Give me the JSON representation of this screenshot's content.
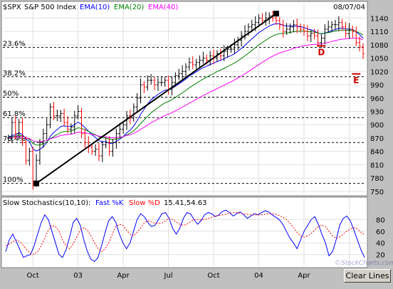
{
  "symbol_label": "$SPX",
  "index_name": "S&P 500 Index",
  "date": "08/07/04",
  "legend": [
    {
      "label": "EMA(10)",
      "color": "#0000ff"
    },
    {
      "label": "EMA(20)",
      "color": "#008000"
    },
    {
      "label": "EMA(40)",
      "color": "#ff00ff"
    }
  ],
  "stoch_header": {
    "label": "Slow Stochastics(10,10):",
    "fast": "Fast %K",
    "fast_color": "#0000ff",
    "slow": "Slow %D",
    "slow_color": "#ff0000",
    "values": "15.41,54.63"
  },
  "clear_button": "Clear Lines",
  "chart_data": [
    {
      "type": "bar",
      "title": "$SPX S&P 500 Index",
      "ylim": [
        745,
        1155
      ],
      "y_ticks": [
        750,
        780,
        810,
        840,
        870,
        900,
        930,
        960,
        990,
        1020,
        1050,
        1080,
        1110,
        1140
      ],
      "x_ticks": [
        {
          "label": "Oct",
          "i": 7
        },
        {
          "label": "03",
          "i": 20
        },
        {
          "label": "Apr",
          "i": 33
        },
        {
          "label": "Jul",
          "i": 46
        },
        {
          "label": "Oct",
          "i": 59
        },
        {
          "label": "04",
          "i": 72
        },
        {
          "label": "Apr",
          "i": 85
        },
        {
          "label": "Jul",
          "i": 98
        }
      ],
      "grid": true,
      "fib_levels": [
        {
          "label": "100%",
          "value": 768
        },
        {
          "label": "76.4%",
          "value": 860
        },
        {
          "label": "61.8%",
          "value": 916
        },
        {
          "label": "50%",
          "value": 962
        },
        {
          "label": "38.2%",
          "value": 1008
        },
        {
          "label": "23.6%",
          "value": 1074
        }
      ],
      "trendline": {
        "from": {
          "i": 8,
          "value": 768
        },
        "to": {
          "i": 77,
          "value": 1150
        }
      },
      "annotations": [
        {
          "label": "D",
          "i": 90,
          "value": 1063
        },
        {
          "label": "E",
          "i": 100,
          "value": 1000
        }
      ],
      "series": {
        "close": [
          870,
          905,
          880,
          905,
          860,
          820,
          840,
          768,
          820,
          860,
          880,
          900,
          940,
          920,
          920,
          925,
          905,
          890,
          895,
          920,
          930,
          880,
          860,
          850,
          840,
          845,
          830,
          855,
          860,
          840,
          860,
          880,
          890,
          900,
          920,
          915,
          940,
          960,
          990,
          985,
          1000,
          1000,
          990,
          995,
          995,
          1000,
          980,
          995,
          1010,
          1015,
          1020,
          1030,
          1040,
          1035,
          1040,
          1045,
          1050,
          1045,
          1055,
          1050,
          1060,
          1055,
          1065,
          1070,
          1070,
          1080,
          1090,
          1100,
          1110,
          1120,
          1125,
          1130,
          1140,
          1135,
          1140,
          1145,
          1140,
          1135,
          1125,
          1110,
          1115,
          1120,
          1125,
          1120,
          1115,
          1110,
          1100,
          1105,
          1100,
          1085,
          1095,
          1115,
          1120,
          1125,
          1125,
          1130,
          1120,
          1105,
          1115,
          1110,
          1085,
          1075,
          1060
        ]
      }
    },
    {
      "type": "line",
      "title": "Slow Stochastics(10,10)",
      "ylim": [
        0,
        100
      ],
      "y_ticks": [
        20,
        40,
        60,
        80
      ],
      "series": [
        {
          "name": "Fast %K",
          "color": "#0000ff",
          "values": [
            25,
            45,
            55,
            42,
            28,
            15,
            18,
            20,
            35,
            55,
            75,
            88,
            80,
            60,
            40,
            20,
            15,
            28,
            50,
            75,
            82,
            70,
            45,
            25,
            12,
            8,
            15,
            35,
            58,
            78,
            85,
            75,
            55,
            40,
            30,
            40,
            60,
            80,
            90,
            85,
            75,
            68,
            70,
            80,
            90,
            92,
            82,
            65,
            55,
            65,
            82,
            92,
            90,
            80,
            72,
            78,
            88,
            92,
            90,
            85,
            88,
            94,
            96,
            92,
            86,
            90,
            93,
            88,
            82,
            86,
            90,
            88,
            92,
            95,
            93,
            88,
            84,
            80,
            72,
            60,
            48,
            40,
            30,
            45,
            60,
            70,
            80,
            85,
            72,
            55,
            40,
            18,
            25,
            45,
            70,
            82,
            86,
            78,
            62,
            45,
            28,
            15
          ]
        },
        {
          "name": "Slow %D",
          "color": "#ff0000",
          "values": [
            35,
            38,
            42,
            45,
            42,
            35,
            28,
            22,
            20,
            25,
            35,
            48,
            62,
            70,
            68,
            60,
            45,
            35,
            30,
            38,
            50,
            62,
            66,
            62,
            52,
            40,
            30,
            25,
            30,
            40,
            55,
            68,
            72,
            70,
            62,
            55,
            52,
            58,
            66,
            74,
            78,
            76,
            74,
            73,
            74,
            78,
            82,
            80,
            76,
            72,
            70,
            72,
            76,
            80,
            80,
            79,
            80,
            82,
            84,
            86,
            87,
            88,
            89,
            91,
            92,
            92,
            91,
            90,
            89,
            88,
            88,
            88,
            88,
            89,
            90,
            90,
            89,
            87,
            84,
            80,
            74,
            66,
            58,
            52,
            50,
            52,
            56,
            62,
            68,
            70,
            68,
            60,
            52,
            48,
            50,
            55,
            60,
            64,
            66,
            64,
            58,
            54
          ]
        }
      ]
    }
  ]
}
